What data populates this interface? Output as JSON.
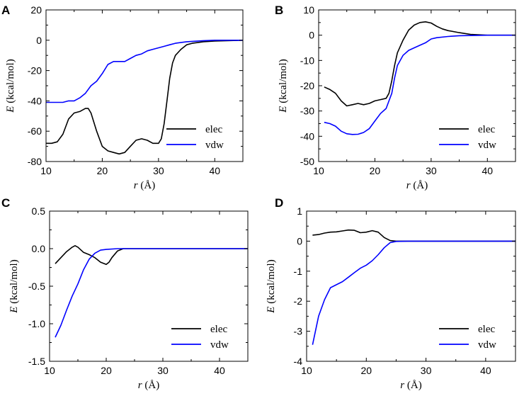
{
  "chart_data": [
    {
      "panel": "A",
      "type": "line",
      "xlabel_var": "r",
      "xlabel_unit": "(Å)",
      "ylabel_var": "E",
      "ylabel_unit": "(kcal/mol)",
      "xlim": [
        10,
        45
      ],
      "ylim": [
        -80,
        20
      ],
      "xticks": [
        10,
        20,
        30,
        40
      ],
      "yticks": [
        -80,
        -60,
        -40,
        -20,
        0,
        20
      ],
      "ytick_labels": [
        "-80",
        "-60",
        "-40",
        "-20",
        "0",
        "20"
      ],
      "legend": "bottom-right",
      "series": [
        {
          "name": "elec",
          "color": "#000000",
          "points": [
            [
              10,
              -68
            ],
            [
              11,
              -68
            ],
            [
              12,
              -67
            ],
            [
              13,
              -62
            ],
            [
              14,
              -52
            ],
            [
              15,
              -48
            ],
            [
              16,
              -47
            ],
            [
              17,
              -45
            ],
            [
              17.5,
              -45
            ],
            [
              18,
              -48
            ],
            [
              19,
              -60
            ],
            [
              20,
              -70
            ],
            [
              21,
              -73
            ],
            [
              22,
              -74
            ],
            [
              23,
              -75
            ],
            [
              24,
              -74
            ],
            [
              25,
              -70
            ],
            [
              26,
              -66
            ],
            [
              27,
              -65
            ],
            [
              28,
              -66
            ],
            [
              29,
              -68
            ],
            [
              30,
              -68
            ],
            [
              30.5,
              -65
            ],
            [
              31,
              -55
            ],
            [
              31.5,
              -40
            ],
            [
              32,
              -25
            ],
            [
              32.5,
              -15
            ],
            [
              33,
              -10
            ],
            [
              34,
              -6
            ],
            [
              35,
              -3
            ],
            [
              36,
              -2
            ],
            [
              38,
              -1
            ],
            [
              40,
              -0.5
            ],
            [
              45,
              0
            ]
          ]
        },
        {
          "name": "vdw",
          "color": "#0000ff",
          "points": [
            [
              10,
              -41
            ],
            [
              12,
              -41
            ],
            [
              13,
              -41
            ],
            [
              14,
              -40
            ],
            [
              15,
              -40
            ],
            [
              16,
              -38
            ],
            [
              17,
              -35
            ],
            [
              18,
              -30
            ],
            [
              19,
              -27
            ],
            [
              20,
              -22
            ],
            [
              21,
              -16
            ],
            [
              22,
              -14
            ],
            [
              23,
              -14
            ],
            [
              24,
              -14
            ],
            [
              25,
              -12
            ],
            [
              26,
              -10
            ],
            [
              27,
              -9
            ],
            [
              28,
              -7
            ],
            [
              29,
              -6
            ],
            [
              30,
              -5
            ],
            [
              31,
              -4
            ],
            [
              32,
              -3
            ],
            [
              33,
              -2
            ],
            [
              35,
              -1
            ],
            [
              38,
              -0.3
            ],
            [
              40,
              0
            ],
            [
              45,
              0
            ]
          ]
        }
      ]
    },
    {
      "panel": "B",
      "type": "line",
      "xlabel_var": "r",
      "xlabel_unit": "(Å)",
      "ylabel_var": "E",
      "ylabel_unit": "(kcal/mol)",
      "xlim": [
        10,
        45
      ],
      "ylim": [
        -50,
        10
      ],
      "xticks": [
        10,
        20,
        30,
        40
      ],
      "yticks": [
        -50,
        -40,
        -30,
        -20,
        -10,
        0,
        10
      ],
      "ytick_labels": [
        "-50",
        "-40",
        "-30",
        "-20",
        "-10",
        "0",
        "10"
      ],
      "legend": "bottom-right",
      "series": [
        {
          "name": "elec",
          "color": "#000000",
          "points": [
            [
              11,
              -20.5
            ],
            [
              12,
              -21.5
            ],
            [
              13,
              -23
            ],
            [
              14,
              -26
            ],
            [
              15,
              -28
            ],
            [
              16,
              -27.5
            ],
            [
              17,
              -27
            ],
            [
              18,
              -27.5
            ],
            [
              19,
              -27
            ],
            [
              20,
              -26
            ],
            [
              21,
              -25.5
            ],
            [
              22,
              -25
            ],
            [
              22.5,
              -23
            ],
            [
              23,
              -18
            ],
            [
              23.5,
              -12
            ],
            [
              24,
              -7
            ],
            [
              25,
              -2
            ],
            [
              26,
              2
            ],
            [
              27,
              4
            ],
            [
              28,
              5
            ],
            [
              29,
              5.3
            ],
            [
              30,
              4.8
            ],
            [
              31,
              3.5
            ],
            [
              32,
              2.5
            ],
            [
              33,
              1.8
            ],
            [
              35,
              1
            ],
            [
              37,
              0.3
            ],
            [
              40,
              0
            ],
            [
              45,
              0
            ]
          ]
        },
        {
          "name": "vdw",
          "color": "#0000ff",
          "points": [
            [
              11,
              -34.5
            ],
            [
              12,
              -35
            ],
            [
              13,
              -36
            ],
            [
              14,
              -38
            ],
            [
              15,
              -39
            ],
            [
              16,
              -39.3
            ],
            [
              17,
              -39.2
            ],
            [
              18,
              -38.5
            ],
            [
              19,
              -37
            ],
            [
              20,
              -34
            ],
            [
              21,
              -31
            ],
            [
              22,
              -29
            ],
            [
              22.5,
              -26
            ],
            [
              23,
              -23
            ],
            [
              23.5,
              -17
            ],
            [
              24,
              -12
            ],
            [
              25,
              -8
            ],
            [
              26,
              -6
            ],
            [
              27,
              -5
            ],
            [
              28,
              -4
            ],
            [
              29,
              -3
            ],
            [
              30,
              -1.5
            ],
            [
              31,
              -1
            ],
            [
              33,
              -0.5
            ],
            [
              35,
              -0.2
            ],
            [
              40,
              0
            ],
            [
              45,
              0
            ]
          ]
        }
      ]
    },
    {
      "panel": "C",
      "type": "line",
      "xlabel_var": "r",
      "xlabel_unit": "(Å)",
      "ylabel_var": "E",
      "ylabel_unit": "(kcal/mol)",
      "xlim": [
        10,
        45
      ],
      "ylim": [
        -1.5,
        0.5
      ],
      "xticks": [
        10,
        20,
        30,
        40
      ],
      "yticks": [
        -1.5,
        -1.0,
        -0.5,
        0.0,
        0.5
      ],
      "ytick_labels": [
        "-1.5",
        "-1.0",
        "-0.5",
        "0.0",
        "0.5"
      ],
      "legend": "bottom-right",
      "series": [
        {
          "name": "elec",
          "color": "#000000",
          "points": [
            [
              11,
              -0.2
            ],
            [
              12,
              -0.12
            ],
            [
              13,
              -0.04
            ],
            [
              14,
              0.02
            ],
            [
              14.5,
              0.04
            ],
            [
              15,
              0.02
            ],
            [
              16,
              -0.05
            ],
            [
              17,
              -0.08
            ],
            [
              18,
              -0.12
            ],
            [
              19,
              -0.18
            ],
            [
              20,
              -0.21
            ],
            [
              20.5,
              -0.18
            ],
            [
              21,
              -0.12
            ],
            [
              22,
              -0.03
            ],
            [
              23,
              0
            ],
            [
              45,
              0
            ]
          ]
        },
        {
          "name": "vdw",
          "color": "#0000ff",
          "points": [
            [
              11,
              -1.18
            ],
            [
              12,
              -1.02
            ],
            [
              13,
              -0.82
            ],
            [
              14,
              -0.63
            ],
            [
              15,
              -0.47
            ],
            [
              16,
              -0.28
            ],
            [
              17,
              -0.14
            ],
            [
              18,
              -0.06
            ],
            [
              19,
              -0.02
            ],
            [
              20,
              -0.01
            ],
            [
              22,
              0
            ],
            [
              45,
              0
            ]
          ]
        }
      ]
    },
    {
      "panel": "D",
      "type": "line",
      "xlabel_var": "r",
      "xlabel_unit": "(Å)",
      "ylabel_var": "E",
      "ylabel_unit": "(kcal/mol)",
      "xlim": [
        10,
        45
      ],
      "ylim": [
        -4,
        1
      ],
      "xticks": [
        10,
        20,
        30,
        40
      ],
      "yticks": [
        -4,
        -3,
        -2,
        -1,
        0,
        1
      ],
      "ytick_labels": [
        "-4",
        "-3",
        "-2",
        "-1",
        "0",
        "1"
      ],
      "legend": "bottom-right",
      "series": [
        {
          "name": "elec",
          "color": "#000000",
          "points": [
            [
              11,
              0.2
            ],
            [
              12,
              0.22
            ],
            [
              13,
              0.27
            ],
            [
              14,
              0.3
            ],
            [
              15,
              0.31
            ],
            [
              16,
              0.34
            ],
            [
              17,
              0.37
            ],
            [
              18,
              0.36
            ],
            [
              19,
              0.28
            ],
            [
              20,
              0.3
            ],
            [
              21,
              0.35
            ],
            [
              22,
              0.3
            ],
            [
              23,
              0.12
            ],
            [
              24,
              0.02
            ],
            [
              25,
              0
            ],
            [
              45,
              0
            ]
          ]
        },
        {
          "name": "vdw",
          "color": "#0000ff",
          "points": [
            [
              11,
              -3.45
            ],
            [
              12,
              -2.5
            ],
            [
              13,
              -1.95
            ],
            [
              14,
              -1.55
            ],
            [
              15,
              -1.45
            ],
            [
              16,
              -1.35
            ],
            [
              17,
              -1.2
            ],
            [
              18,
              -1.05
            ],
            [
              19,
              -0.9
            ],
            [
              20,
              -0.8
            ],
            [
              21,
              -0.65
            ],
            [
              22,
              -0.45
            ],
            [
              23,
              -0.22
            ],
            [
              24,
              -0.05
            ],
            [
              25,
              -0.01
            ],
            [
              27,
              0
            ],
            [
              45,
              0
            ]
          ]
        }
      ]
    }
  ]
}
